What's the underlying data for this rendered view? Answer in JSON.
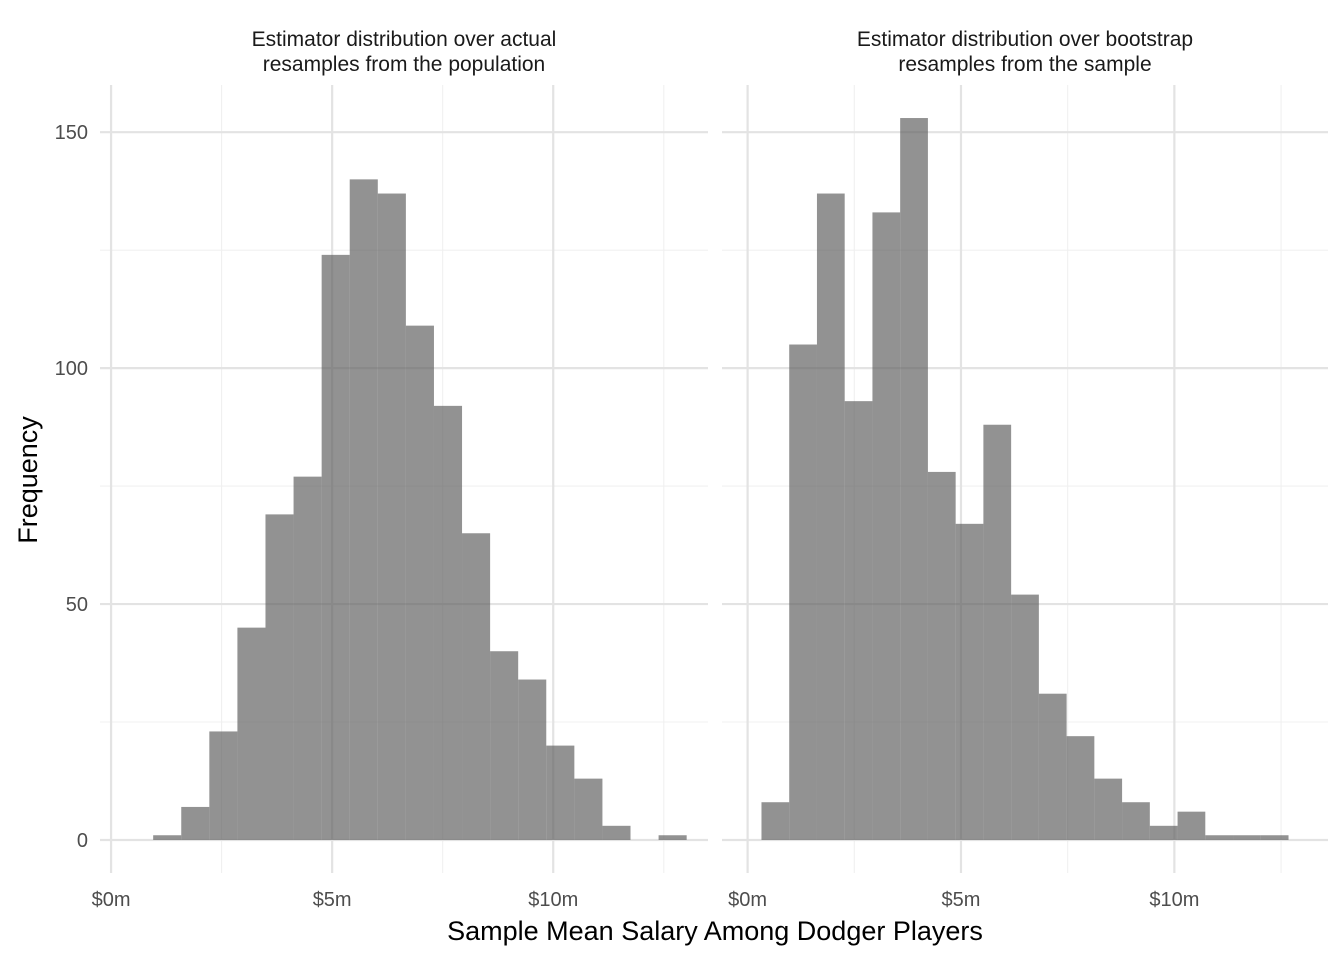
{
  "chart_data": {
    "type": "bar",
    "xlabel": "Sample Mean Salary Among Dodger Players",
    "ylabel": "Frequency",
    "y_ticks": [
      0,
      50,
      100,
      150
    ],
    "y_tick_labels": [
      "0",
      "50",
      "100",
      "150"
    ],
    "panels": [
      {
        "title_lines": [
          "Estimator distribution over actual",
          "resamples from the population"
        ],
        "xlim": [
          -0.25,
          13.5
        ],
        "ylim": [
          -7,
          160
        ],
        "x_ticks": [
          0,
          5,
          10
        ],
        "x_tick_labels": [
          "$0m",
          "$5m",
          "$10m"
        ],
        "bin_width": 0.635,
        "bins": [
          {
            "x": 1.27,
            "count": 1
          },
          {
            "x": 1.905,
            "count": 7
          },
          {
            "x": 2.54,
            "count": 23
          },
          {
            "x": 3.175,
            "count": 45
          },
          {
            "x": 3.81,
            "count": 69
          },
          {
            "x": 4.445,
            "count": 77
          },
          {
            "x": 5.08,
            "count": 124
          },
          {
            "x": 5.715,
            "count": 140
          },
          {
            "x": 6.35,
            "count": 137
          },
          {
            "x": 6.985,
            "count": 109
          },
          {
            "x": 7.62,
            "count": 92
          },
          {
            "x": 8.255,
            "count": 65
          },
          {
            "x": 8.89,
            "count": 40
          },
          {
            "x": 9.525,
            "count": 34
          },
          {
            "x": 10.16,
            "count": 20
          },
          {
            "x": 10.795,
            "count": 13
          },
          {
            "x": 11.43,
            "count": 3
          },
          {
            "x": 12.065,
            "count": 0
          },
          {
            "x": 12.7,
            "count": 1
          }
        ]
      },
      {
        "title_lines": [
          "Estimator distribution over bootstrap",
          "resamples from the sample"
        ],
        "xlim": [
          -0.6,
          13.6
        ],
        "ylim": [
          -7,
          160
        ],
        "x_ticks": [
          0,
          5,
          10
        ],
        "x_tick_labels": [
          "$0m",
          "$5m",
          "$10m"
        ],
        "bin_width": 0.65,
        "bins": [
          {
            "x": 0.65,
            "count": 8
          },
          {
            "x": 1.3,
            "count": 105
          },
          {
            "x": 1.95,
            "count": 137
          },
          {
            "x": 2.6,
            "count": 93
          },
          {
            "x": 3.25,
            "count": 133
          },
          {
            "x": 3.9,
            "count": 153
          },
          {
            "x": 4.55,
            "count": 78
          },
          {
            "x": 5.2,
            "count": 67
          },
          {
            "x": 5.85,
            "count": 88
          },
          {
            "x": 6.5,
            "count": 52
          },
          {
            "x": 7.15,
            "count": 31
          },
          {
            "x": 7.8,
            "count": 22
          },
          {
            "x": 8.45,
            "count": 13
          },
          {
            "x": 9.1,
            "count": 8
          },
          {
            "x": 9.75,
            "count": 3
          },
          {
            "x": 10.4,
            "count": 6
          },
          {
            "x": 11.05,
            "count": 1
          },
          {
            "x": 11.7,
            "count": 1
          },
          {
            "x": 12.35,
            "count": 1
          }
        ]
      }
    ]
  }
}
